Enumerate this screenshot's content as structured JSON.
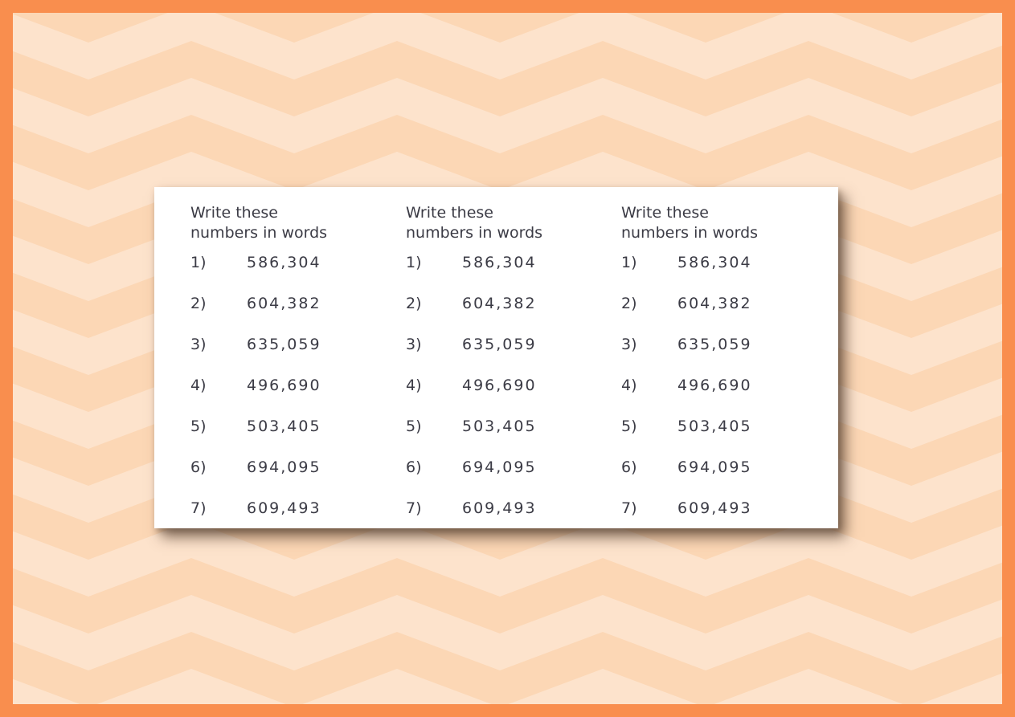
{
  "frame": {
    "border_color": "#f98e4e",
    "pattern_color_dark": "#fcd7b5",
    "pattern_color_light": "#fde3cc",
    "card_background": "#ffffff",
    "text_color": "#3b3b45"
  },
  "worksheet": {
    "columns": [
      {
        "header": "Write these numbers in words",
        "items": [
          {
            "label": "1)",
            "value": "586,304"
          },
          {
            "label": "2)",
            "value": "604,382"
          },
          {
            "label": "3)",
            "value": "635,059"
          },
          {
            "label": "4)",
            "value": "496,690"
          },
          {
            "label": "5)",
            "value": "503,405"
          },
          {
            "label": "6)",
            "value": "694,095"
          },
          {
            "label": "7)",
            "value": "609,493"
          }
        ]
      },
      {
        "header": "Write these numbers in words",
        "items": [
          {
            "label": "1)",
            "value": "586,304"
          },
          {
            "label": "2)",
            "value": "604,382"
          },
          {
            "label": "3)",
            "value": "635,059"
          },
          {
            "label": "4)",
            "value": "496,690"
          },
          {
            "label": "5)",
            "value": "503,405"
          },
          {
            "label": "6)",
            "value": "694,095"
          },
          {
            "label": "7)",
            "value": "609,493"
          }
        ]
      },
      {
        "header": "Write these numbers in words",
        "items": [
          {
            "label": "1)",
            "value": "586,304"
          },
          {
            "label": "2)",
            "value": "604,382"
          },
          {
            "label": "3)",
            "value": "635,059"
          },
          {
            "label": "4)",
            "value": "496,690"
          },
          {
            "label": "5)",
            "value": "503,405"
          },
          {
            "label": "6)",
            "value": "694,095"
          },
          {
            "label": "7)",
            "value": "609,493"
          }
        ]
      }
    ]
  }
}
